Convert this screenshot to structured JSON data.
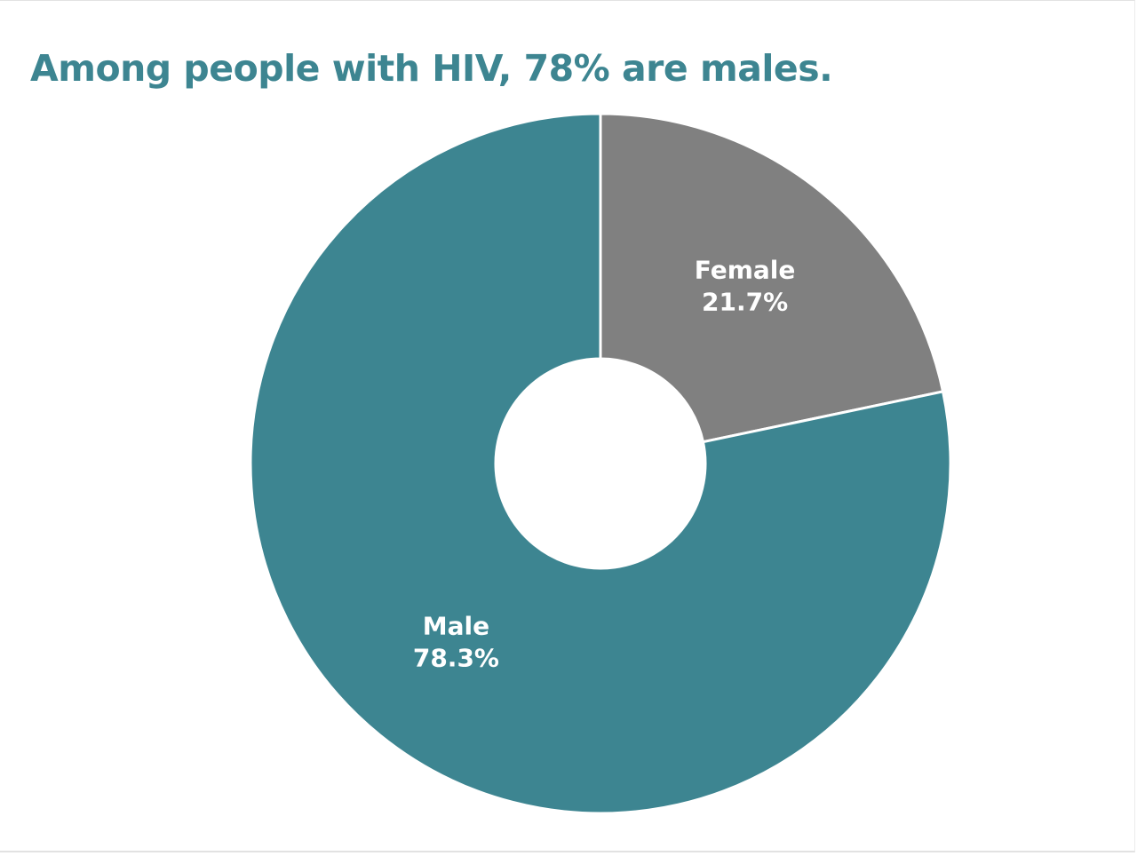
{
  "chart_data": {
    "type": "pie",
    "title": "Among people with HIV, 78% are males.",
    "hole": true,
    "start_angle_deg": 0,
    "direction": "clockwise",
    "slices": [
      {
        "name": "Female",
        "value": 21.7,
        "label": "21.7%",
        "color": "#808080"
      },
      {
        "name": "Male",
        "value": 78.3,
        "label": "78.3%",
        "color": "#3d8591"
      }
    ]
  },
  "colors": {
    "title": "#3d8591",
    "slice_border": "#ffffff",
    "background": "#ffffff"
  }
}
